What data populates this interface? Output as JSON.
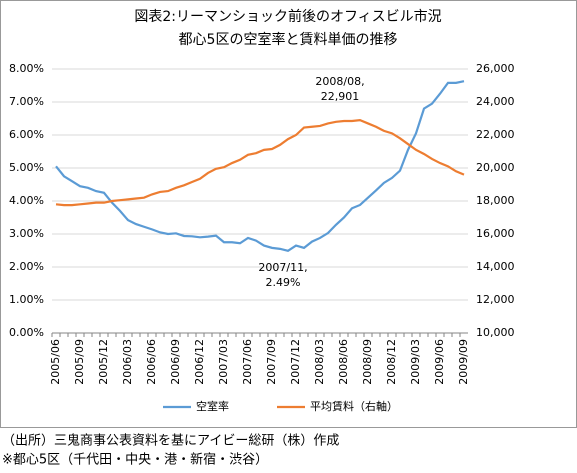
{
  "chart_data": {
    "type": "line",
    "title": "図表2:リーマンショック前後のオフィスビル市況",
    "subtitle": "都心5区の空室率と賃料単価の推移",
    "categories": [
      "2005/06",
      null,
      null,
      "2005/09",
      null,
      null,
      "2005/12",
      null,
      null,
      "2006/03",
      null,
      null,
      "2006/06",
      null,
      null,
      "2006/09",
      null,
      null,
      "2006/12",
      null,
      null,
      "2007/03",
      null,
      null,
      "2007/06",
      null,
      null,
      "2007/09",
      null,
      null,
      "2007/12",
      null,
      null,
      "2008/03",
      null,
      null,
      "2008/06",
      null,
      null,
      "2008/09",
      null,
      null,
      "2008/12",
      null,
      null,
      "2009/03",
      null,
      null,
      "2009/06",
      null,
      null,
      "2009/09"
    ],
    "series": [
      {
        "name": "空室率",
        "color": "#5b9bd5",
        "values": [
          5.05,
          4.75,
          4.6,
          4.45,
          4.4,
          4.3,
          4.25,
          3.95,
          3.7,
          3.42,
          3.3,
          3.22,
          3.14,
          3.05,
          3.0,
          3.02,
          2.94,
          2.93,
          2.9,
          2.92,
          2.95,
          2.75,
          2.75,
          2.72,
          2.88,
          2.8,
          2.65,
          2.58,
          2.55,
          2.49,
          2.65,
          2.58,
          2.77,
          2.88,
          3.03,
          3.28,
          3.5,
          3.78,
          3.88,
          4.1,
          4.32,
          4.55,
          4.7,
          4.92,
          5.55,
          6.05,
          6.8,
          6.95,
          7.25,
          7.58,
          7.58,
          7.63
        ]
      },
      {
        "name": "平均賃料（右軸）",
        "color": "#ed7d31",
        "axis": "y2",
        "values": [
          17800,
          17750,
          17750,
          17800,
          17850,
          17900,
          17900,
          18000,
          18050,
          18100,
          18150,
          18200,
          18400,
          18550,
          18600,
          18800,
          18950,
          19150,
          19350,
          19700,
          19950,
          20050,
          20300,
          20500,
          20800,
          20900,
          21100,
          21150,
          21400,
          21750,
          22000,
          22450,
          22500,
          22550,
          22700,
          22800,
          22850,
          22850,
          22901,
          22700,
          22500,
          22250,
          22100,
          21800,
          21450,
          21100,
          20850,
          20550,
          20300,
          20100,
          19800,
          19600
        ]
      }
    ],
    "ylim": [
      0,
      8
    ],
    "yticks": [
      {
        "value": 0,
        "label": "0.00%"
      },
      {
        "value": 1,
        "label": "1.00%"
      },
      {
        "value": 2,
        "label": "2.00%"
      },
      {
        "value": 3,
        "label": "3.00%"
      },
      {
        "value": 4,
        "label": "4.00%"
      },
      {
        "value": 5,
        "label": "5.00%"
      },
      {
        "value": 6,
        "label": "6.00%"
      },
      {
        "value": 7,
        "label": "7.00%"
      },
      {
        "value": 8,
        "label": "8.00%"
      }
    ],
    "y2lim": [
      10000,
      26000
    ],
    "y2ticks": [
      {
        "value": 10000,
        "label": "10,000"
      },
      {
        "value": 12000,
        "label": "12,000"
      },
      {
        "value": 14000,
        "label": "14,000"
      },
      {
        "value": 16000,
        "label": "16,000"
      },
      {
        "value": 18000,
        "label": "18,000"
      },
      {
        "value": 20000,
        "label": "20,000"
      },
      {
        "value": 22000,
        "label": "22,000"
      },
      {
        "value": 24000,
        "label": "24,000"
      },
      {
        "value": 26000,
        "label": "26,000"
      }
    ],
    "grid": true,
    "legend": "bottom",
    "annotations": [
      {
        "lines": [
          "2008/08,",
          "22,901"
        ]
      },
      {
        "lines": [
          "2007/11,",
          "2.49%"
        ]
      }
    ],
    "notes": [
      "（出所）三鬼商事公表資料を基にアイビー総研（株）作成",
      "※都心5区（千代田・中央・港・新宿・渋谷）"
    ]
  }
}
